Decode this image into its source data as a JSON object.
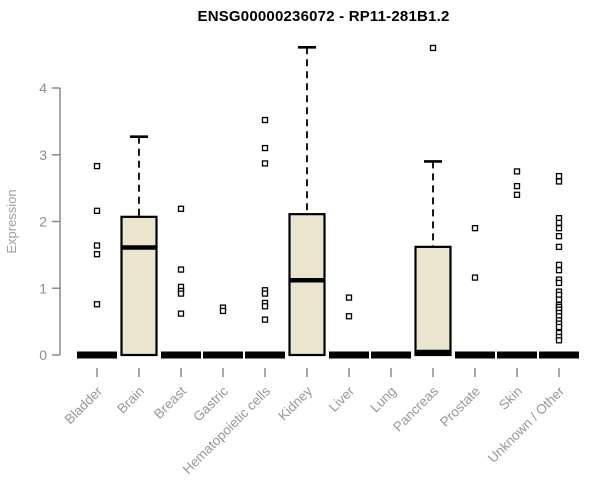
{
  "chart_data": {
    "type": "boxplot",
    "title": "ENSG00000236072 - RP11-281B1.2",
    "ylabel": "Expression",
    "ylim": [
      0,
      4.78
    ],
    "yticks": [
      0,
      1,
      2,
      3,
      4
    ],
    "grid": false,
    "legend": "none",
    "colors": {
      "box_fill": "#ece5cd",
      "box_stroke": "#000000",
      "axis": "#8a8a8a",
      "tick_label": "#8e8e8e",
      "category_label": "#979797",
      "ylabel_color": "#9d9d9d",
      "outlier_fill": "#ffffff",
      "outlier_stroke": "#000000"
    },
    "categories": [
      {
        "name": "Bladder",
        "q1": 0,
        "median": 0,
        "q3": 0,
        "whisker_high": 0,
        "outliers": [
          2.83,
          2.16,
          1.64,
          1.51,
          0.76
        ]
      },
      {
        "name": "Brain",
        "q1": 0,
        "median": 1.61,
        "q3": 2.07,
        "whisker_high": 3.27,
        "outliers": []
      },
      {
        "name": "Breast",
        "q1": 0,
        "median": 0,
        "q3": 0,
        "whisker_high": 0,
        "outliers": [
          2.19,
          1.28,
          1.02,
          0.96,
          0.92,
          0.62
        ]
      },
      {
        "name": "Gastric",
        "q1": 0,
        "median": 0,
        "q3": 0,
        "whisker_high": 0,
        "outliers": [
          0.71,
          0.66
        ]
      },
      {
        "name": "Hematopoietic cells",
        "q1": 0,
        "median": 0,
        "q3": 0,
        "whisker_high": 0,
        "outliers": [
          3.52,
          3.1,
          2.87,
          0.97,
          0.92,
          0.78,
          0.73,
          0.53
        ]
      },
      {
        "name": "Kidney",
        "q1": 0,
        "median": 1.12,
        "q3": 2.11,
        "whisker_high": 4.61,
        "outliers": []
      },
      {
        "name": "Liver",
        "q1": 0,
        "median": 0,
        "q3": 0,
        "whisker_high": 0,
        "outliers": [
          0.86,
          0.58
        ]
      },
      {
        "name": "Lung",
        "q1": 0,
        "median": 0,
        "q3": 0,
        "whisker_high": 0,
        "outliers": []
      },
      {
        "name": "Pancreas",
        "q1": 0,
        "median": 0,
        "q3": 1.62,
        "whisker_high": 2.9,
        "outliers": [
          4.6
        ]
      },
      {
        "name": "Prostate",
        "q1": 0,
        "median": 0,
        "q3": 0,
        "whisker_high": 0,
        "outliers": [
          1.9,
          1.16
        ]
      },
      {
        "name": "Skin",
        "q1": 0,
        "median": 0,
        "q3": 0,
        "whisker_high": 0,
        "outliers": [
          2.75,
          2.53,
          2.4
        ]
      },
      {
        "name": "Unknown / Other",
        "q1": 0,
        "median": 0,
        "q3": 0,
        "whisker_high": 0,
        "outliers": [
          2.68,
          2.6,
          2.05,
          1.98,
          1.9,
          1.78,
          1.62,
          1.35,
          1.27,
          1.13,
          1.08,
          0.95,
          0.9,
          0.83,
          0.75,
          0.72,
          0.68,
          0.63,
          0.58,
          0.52,
          0.47,
          0.42,
          0.33,
          0.27,
          0.22
        ]
      }
    ]
  }
}
